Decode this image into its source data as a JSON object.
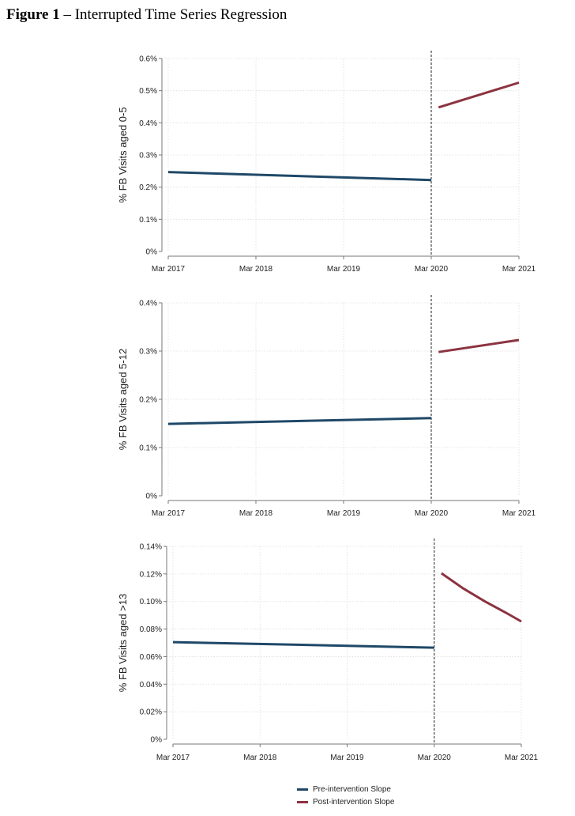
{
  "figure": {
    "label": "Figure 1",
    "separator": " – ",
    "title": "Interrupted Time Series Regression"
  },
  "colors": {
    "pre": "#1f4868",
    "post": "#8c3340",
    "grid": "#dcdcdc",
    "axis": "#777777",
    "intervention_line": "#444444"
  },
  "legend": [
    {
      "label": "Pre-intervention Slope",
      "color": "#1f4868"
    },
    {
      "label": "Post-intervention Slope",
      "color": "#8c3340"
    }
  ],
  "chart_data": [
    {
      "type": "line",
      "ylabel": "% FB Visits aged 0-5",
      "x_ticks": [
        "Mar 2017",
        "Mar 2018",
        "Mar 2019",
        "Mar 2020",
        "Mar 2021"
      ],
      "x_tick_values": [
        0,
        12,
        24,
        36,
        48
      ],
      "y_ticks": [
        "0%",
        "0.1%",
        "0.2%",
        "0.3%",
        "0.4%",
        "0.5%",
        "0.6%"
      ],
      "ylim": [
        0,
        0.6
      ],
      "intervention_x": 36,
      "grid": true,
      "series": [
        {
          "name": "Pre-intervention Slope",
          "x": [
            0,
            36
          ],
          "y": [
            0.247,
            0.222
          ]
        },
        {
          "name": "Post-intervention Slope",
          "x": [
            37,
            48
          ],
          "y": [
            0.448,
            0.525
          ]
        }
      ]
    },
    {
      "type": "line",
      "ylabel": "% FB Visits aged 5-12",
      "x_ticks": [
        "Mar 2017",
        "Mar 2018",
        "Mar 2019",
        "Mar 2020",
        "Mar 2021"
      ],
      "x_tick_values": [
        0,
        12,
        24,
        36,
        48
      ],
      "y_ticks": [
        "0%",
        "0.1%",
        "0.2%",
        "0.3%",
        "0.4%"
      ],
      "ylim": [
        0,
        0.4
      ],
      "intervention_x": 36,
      "grid": true,
      "series": [
        {
          "name": "Pre-intervention Slope",
          "x": [
            0,
            36
          ],
          "y": [
            0.149,
            0.161
          ]
        },
        {
          "name": "Post-intervention Slope",
          "x": [
            37,
            48
          ],
          "y": [
            0.298,
            0.323
          ]
        }
      ]
    },
    {
      "type": "line",
      "ylabel": "% FB Visits aged >13",
      "x_ticks": [
        "Mar 2017",
        "Mar 2018",
        "Mar 2019",
        "Mar 2020",
        "Mar 2021"
      ],
      "x_tick_values": [
        0,
        12,
        24,
        36,
        48
      ],
      "y_ticks": [
        "0%",
        "0.02%",
        "0.04%",
        "0.06%",
        "0.08%",
        "0.10%",
        "0.12%",
        "0.14%"
      ],
      "ylim": [
        0,
        0.14
      ],
      "intervention_x": 36,
      "grid": true,
      "series": [
        {
          "name": "Pre-intervention Slope",
          "x": [
            0,
            36
          ],
          "y": [
            0.0705,
            0.0665
          ]
        },
        {
          "name": "Post-intervention Slope",
          "x": [
            37,
            40,
            43,
            46,
            48
          ],
          "y": [
            0.1205,
            0.1095,
            0.1,
            0.0915,
            0.0855
          ]
        }
      ]
    }
  ]
}
